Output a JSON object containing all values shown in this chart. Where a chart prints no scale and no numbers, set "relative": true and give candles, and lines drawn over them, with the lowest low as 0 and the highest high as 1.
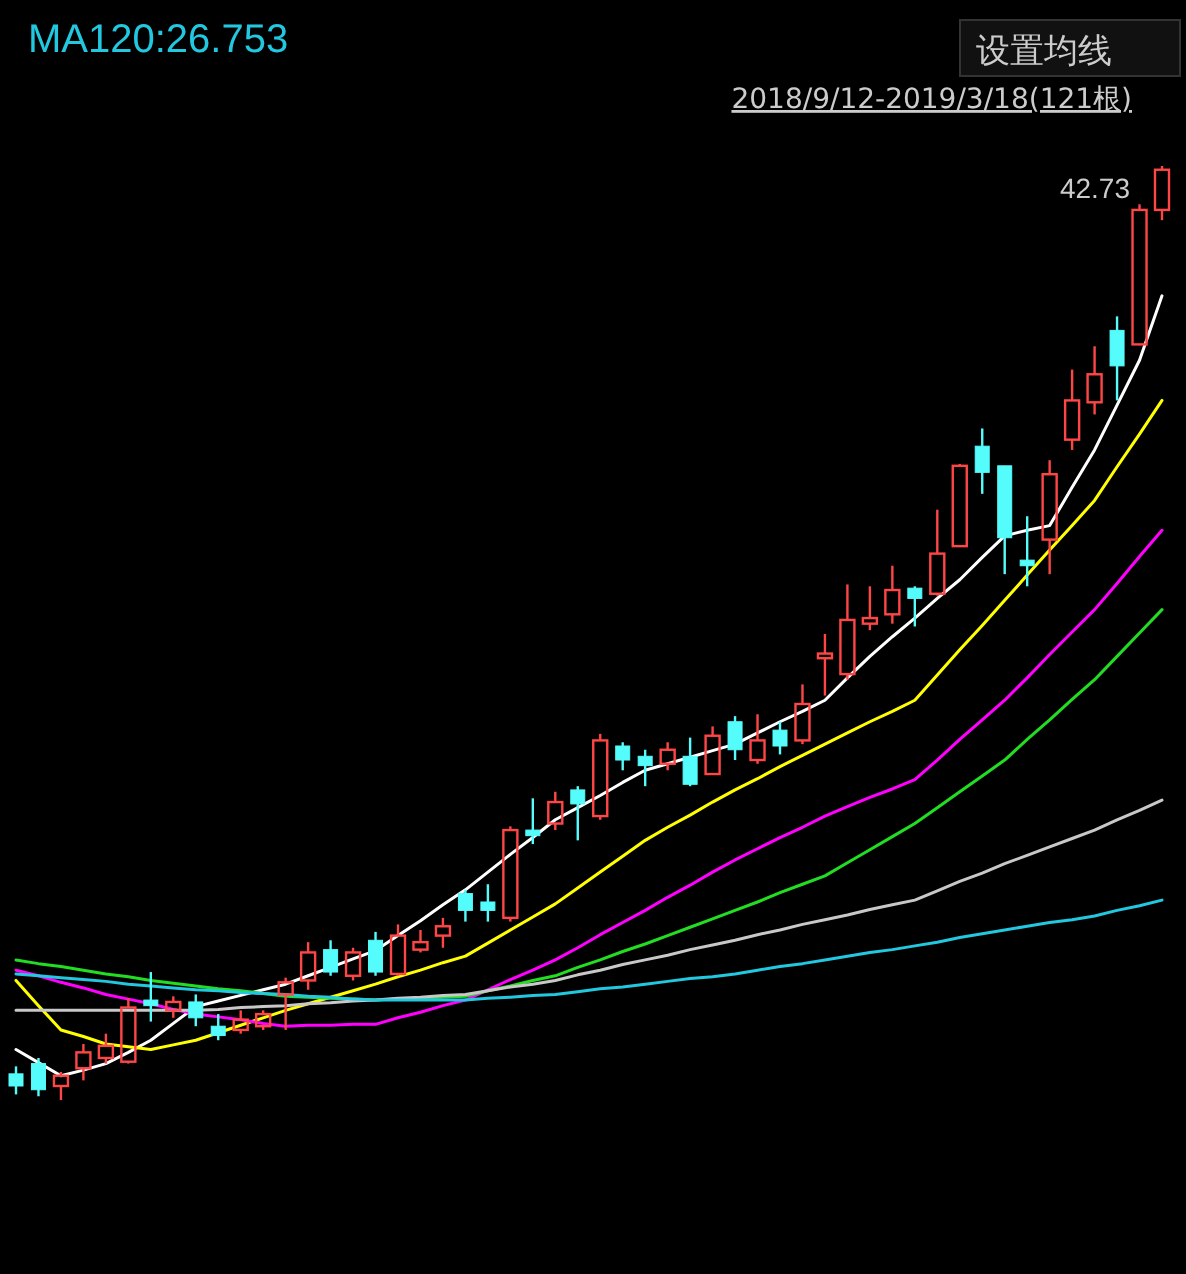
{
  "chart_data": {
    "type": "candlestick",
    "relative": true,
    "title": "MA120:26.753",
    "subtitle": "2018/9/12-2019/3/18(121根)",
    "categories": [
      null,
      null,
      null,
      null,
      null,
      null,
      null,
      null,
      null,
      null,
      null,
      null,
      null,
      null,
      null,
      null,
      null,
      null,
      null,
      null,
      null,
      null,
      null,
      null,
      null,
      null,
      null,
      null,
      null,
      null,
      null,
      null,
      null,
      null,
      null,
      null,
      null,
      null,
      null,
      null,
      null,
      null,
      null,
      null,
      null,
      null,
      null,
      null,
      null,
      null,
      null,
      null
    ],
    "ohlc": [
      [
        0.028,
        0.036,
        0.006,
        0.015
      ],
      [
        0.039,
        0.045,
        0.004,
        0.011
      ],
      [
        0.015,
        0.03,
        0,
        0.026
      ],
      [
        0.034,
        0.06,
        0.021,
        0.051
      ],
      [
        0.045,
        0.071,
        0.039,
        0.058
      ],
      [
        0.041,
        0.109,
        0.039,
        0.099
      ],
      [
        0.107,
        0.137,
        0.084,
        0.101
      ],
      [
        0.096,
        0.111,
        0.088,
        0.105
      ],
      [
        0.105,
        0.113,
        0.079,
        0.088
      ],
      [
        0.079,
        0.092,
        0.064,
        0.069
      ],
      [
        0.075,
        0.096,
        0.071,
        0.086
      ],
      [
        0.079,
        0.096,
        0.075,
        0.092
      ],
      [
        0.113,
        0.131,
        0.075,
        0.126
      ],
      [
        0.128,
        0.169,
        0.118,
        0.158
      ],
      [
        0.161,
        0.171,
        0.133,
        0.137
      ],
      [
        0.133,
        0.163,
        0.128,
        0.158
      ],
      [
        0.171,
        0.18,
        0.133,
        0.137
      ],
      [
        0.135,
        0.188,
        0.133,
        0.176
      ],
      [
        0.161,
        0.182,
        0.158,
        0.169
      ],
      [
        0.176,
        0.195,
        0.163,
        0.186
      ],
      [
        0.221,
        0.225,
        0.191,
        0.203
      ],
      [
        0.212,
        0.231,
        0.191,
        0.203
      ],
      [
        0.195,
        0.293,
        0.191,
        0.289
      ],
      [
        0.289,
        0.323,
        0.274,
        0.283
      ],
      [
        0.296,
        0.33,
        0.289,
        0.319
      ],
      [
        0.332,
        0.336,
        0.278,
        0.317
      ],
      [
        0.304,
        0.392,
        0.3,
        0.385
      ],
      [
        0.379,
        0.383,
        0.353,
        0.364
      ],
      [
        0.368,
        0.375,
        0.336,
        0.358
      ],
      [
        0.36,
        0.383,
        0.353,
        0.375
      ],
      [
        0.368,
        0.388,
        0.336,
        0.338
      ],
      [
        0.349,
        0.4,
        0.349,
        0.39
      ],
      [
        0.405,
        0.411,
        0.364,
        0.375
      ],
      [
        0.364,
        0.413,
        0.36,
        0.385
      ],
      [
        0.396,
        0.405,
        0.37,
        0.379
      ],
      [
        0.385,
        0.445,
        0.381,
        0.424
      ],
      [
        0.473,
        0.499,
        0.433,
        0.478
      ],
      [
        0.456,
        0.552,
        0.45,
        0.514
      ],
      [
        0.51,
        0.55,
        0.503,
        0.516
      ],
      [
        0.52,
        0.572,
        0.51,
        0.546
      ],
      [
        0.548,
        0.55,
        0.507,
        0.537
      ],
      [
        0.542,
        0.632,
        0.54,
        0.585
      ],
      [
        0.593,
        0.681,
        0.593,
        0.679
      ],
      [
        0.7,
        0.719,
        0.649,
        0.672
      ],
      [
        0.679,
        0.679,
        0.563,
        0.602
      ],
      [
        0.578,
        0.625,
        0.55,
        0.572
      ],
      [
        0.6,
        0.685,
        0.563,
        0.67
      ],
      [
        0.707,
        0.782,
        0.696,
        0.749
      ],
      [
        0.747,
        0.807,
        0.734,
        0.777
      ],
      [
        0.824,
        0.839,
        0.749,
        0.786
      ],
      [
        0.809,
        0.959,
        0.809,
        0.953
      ],
      [
        0.953,
        1,
        0.942,
        0.996
      ]
    ],
    "series": [
      {
        "type": "line",
        "color": "#ffffff",
        "values": [
          0.054,
          0.04,
          0.026,
          0.032,
          0.039,
          0.051,
          0.064,
          0.082,
          0.1,
          0.106,
          0.112,
          0.118,
          0.124,
          0.133,
          0.142,
          0.151,
          0.16,
          0.176,
          0.192,
          0.209,
          0.225,
          0.244,
          0.263,
          0.281,
          0.3,
          0.313,
          0.326,
          0.34,
          0.353,
          0.36,
          0.367,
          0.374,
          0.381,
          0.393,
          0.405,
          0.416,
          0.428,
          0.452,
          0.475,
          0.496,
          0.516,
          0.537,
          0.557,
          0.581,
          0.604,
          0.61,
          0.615,
          0.656,
          0.696,
          0.744,
          0.792,
          0.861
        ]
      },
      {
        "type": "line",
        "color": "#ffff00",
        "values": [
          0.128,
          0.101,
          0.075,
          0.068,
          0.06,
          0.057,
          0.054,
          0.059,
          0.064,
          0.072,
          0.08,
          0.088,
          0.096,
          0.103,
          0.11,
          0.117,
          0.124,
          0.132,
          0.139,
          0.147,
          0.154,
          0.168,
          0.182,
          0.196,
          0.21,
          0.227,
          0.244,
          0.261,
          0.278,
          0.292,
          0.305,
          0.319,
          0.332,
          0.344,
          0.357,
          0.369,
          0.381,
          0.393,
          0.405,
          0.416,
          0.428,
          0.455,
          0.482,
          0.508,
          0.535,
          0.562,
          0.589,
          0.615,
          0.642,
          0.678,
          0.713,
          0.749
        ]
      },
      {
        "type": "line",
        "color": "#ff00ff",
        "values": [
          0.139,
          0.133,
          0.126,
          0.12,
          0.113,
          0.108,
          0.103,
          0.097,
          0.092,
          0.089,
          0.086,
          0.082,
          0.079,
          0.08,
          0.08,
          0.081,
          0.081,
          0.088,
          0.094,
          0.101,
          0.107,
          0.118,
          0.129,
          0.139,
          0.15,
          0.163,
          0.177,
          0.19,
          0.203,
          0.217,
          0.23,
          0.244,
          0.257,
          0.269,
          0.281,
          0.292,
          0.304,
          0.314,
          0.324,
          0.333,
          0.343,
          0.364,
          0.386,
          0.407,
          0.428,
          0.452,
          0.477,
          0.501,
          0.525,
          0.553,
          0.582,
          0.61
        ]
      },
      {
        "type": "line",
        "color": "#22dd22",
        "values": [
          0.15,
          0.146,
          0.143,
          0.139,
          0.135,
          0.132,
          0.128,
          0.125,
          0.122,
          0.119,
          0.117,
          0.114,
          0.111,
          0.11,
          0.109,
          0.108,
          0.107,
          0.108,
          0.109,
          0.11,
          0.111,
          0.117,
          0.122,
          0.128,
          0.133,
          0.142,
          0.15,
          0.159,
          0.167,
          0.176,
          0.185,
          0.194,
          0.203,
          0.212,
          0.222,
          0.231,
          0.24,
          0.254,
          0.268,
          0.282,
          0.296,
          0.313,
          0.33,
          0.347,
          0.364,
          0.386,
          0.407,
          0.429,
          0.45,
          0.475,
          0.5,
          0.525
        ]
      },
      {
        "type": "line",
        "color": "#c8c8c8",
        "values": [
          0.096,
          0.096,
          0.096,
          0.096,
          0.096,
          0.096,
          0.096,
          0.096,
          0.096,
          0.097,
          0.099,
          0.1,
          0.101,
          0.103,
          0.104,
          0.106,
          0.107,
          0.109,
          0.11,
          0.112,
          0.113,
          0.117,
          0.121,
          0.124,
          0.128,
          0.134,
          0.139,
          0.145,
          0.15,
          0.155,
          0.161,
          0.166,
          0.171,
          0.177,
          0.182,
          0.188,
          0.193,
          0.198,
          0.204,
          0.209,
          0.214,
          0.224,
          0.234,
          0.243,
          0.253,
          0.262,
          0.271,
          0.28,
          0.289,
          0.3,
          0.31,
          0.321
        ]
      },
      {
        "type": "line",
        "color": "#22c8e0",
        "values": [
          0.135,
          0.133,
          0.131,
          0.129,
          0.127,
          0.124,
          0.122,
          0.12,
          0.118,
          0.117,
          0.115,
          0.114,
          0.113,
          0.111,
          0.11,
          0.108,
          0.107,
          0.107,
          0.107,
          0.107,
          0.107,
          0.109,
          0.11,
          0.112,
          0.113,
          0.116,
          0.119,
          0.121,
          0.124,
          0.127,
          0.13,
          0.132,
          0.135,
          0.139,
          0.143,
          0.146,
          0.15,
          0.154,
          0.158,
          0.161,
          0.165,
          0.169,
          0.174,
          0.178,
          0.182,
          0.186,
          0.19,
          0.193,
          0.197,
          0.203,
          0.208,
          0.214
        ]
      }
    ],
    "annotations": [
      "42.73",
      "设置均线"
    ]
  }
}
